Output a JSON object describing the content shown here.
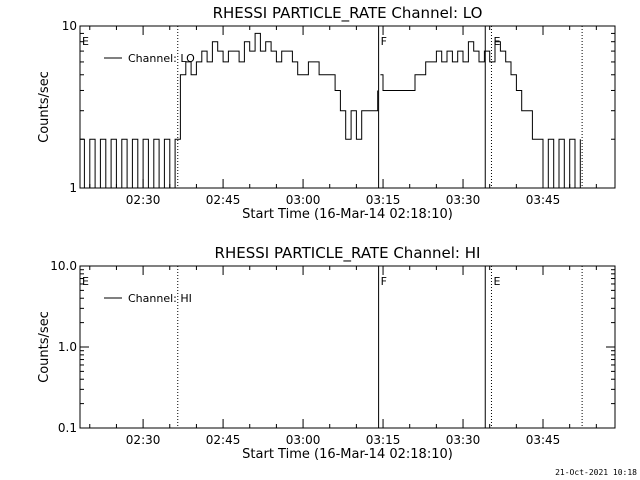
{
  "footer": {
    "timestamp": "21-Oct-2021 10:18"
  },
  "chart_data": [
    {
      "type": "line",
      "title": "RHESSI PARTICLE_RATE Channel: LO",
      "xlabel": "Start Time (16-Mar-14 02:18:10)",
      "ylabel": "Counts/sec",
      "yscale": "log",
      "ylim": [
        1,
        10
      ],
      "xlim": [
        "02:18:10",
        "03:58:30"
      ],
      "x_ticks": [
        "02:30",
        "02:45",
        "03:00",
        "03:15",
        "03:30",
        "03:45"
      ],
      "y_ticks": [
        "1",
        "10"
      ],
      "legend": {
        "position": "top-left",
        "entries": [
          "Channel: LO"
        ]
      },
      "grid": false,
      "markers": [
        {
          "label": "E",
          "time": "02:18:10",
          "style": "none"
        },
        {
          "label": "",
          "time": "02:36:30",
          "style": "dotted"
        },
        {
          "label": "F",
          "time": "03:14:10",
          "style": "solid"
        },
        {
          "label": "",
          "time": "03:34:10",
          "style": "solid"
        },
        {
          "label": "E",
          "time": "03:35:20",
          "style": "dotted"
        },
        {
          "label": "",
          "time": "03:52:20",
          "style": "dotted"
        }
      ],
      "series": [
        {
          "name": "Channel: LO",
          "gaps_at": [
            "03:14:10"
          ],
          "x": [
            "02:18:10",
            "02:19:00",
            "02:20:00",
            "02:21:00",
            "02:22:00",
            "02:23:00",
            "02:24:00",
            "02:25:00",
            "02:26:00",
            "02:27:00",
            "02:28:00",
            "02:29:00",
            "02:30:00",
            "02:31:00",
            "02:32:00",
            "02:33:00",
            "02:34:00",
            "02:35:00",
            "02:36:00",
            "02:36:30",
            "02:37:00",
            "02:38:00",
            "02:39:00",
            "02:40:00",
            "02:41:00",
            "02:42:00",
            "02:43:00",
            "02:44:00",
            "02:45:00",
            "02:46:00",
            "02:47:00",
            "02:48:00",
            "02:49:00",
            "02:50:00",
            "02:51:00",
            "02:52:00",
            "02:53:00",
            "02:54:00",
            "02:55:00",
            "02:56:00",
            "02:57:00",
            "02:58:00",
            "02:59:00",
            "03:00:00",
            "03:01:00",
            "03:02:00",
            "03:03:00",
            "03:04:00",
            "03:05:00",
            "03:06:00",
            "03:07:00",
            "03:08:00",
            "03:09:00",
            "03:10:00",
            "03:11:00",
            "03:12:00",
            "03:13:00",
            "03:14:00",
            "03:14:30",
            "03:15:00",
            "03:16:00",
            "03:17:00",
            "03:18:00",
            "03:19:00",
            "03:20:00",
            "03:21:00",
            "03:22:00",
            "03:23:00",
            "03:24:00",
            "03:25:00",
            "03:26:00",
            "03:27:00",
            "03:28:00",
            "03:29:00",
            "03:30:00",
            "03:31:00",
            "03:32:00",
            "03:33:00",
            "03:34:00",
            "03:35:00",
            "03:36:00",
            "03:37:00",
            "03:38:00",
            "03:39:00",
            "03:40:00",
            "03:41:00",
            "03:42:00",
            "03:43:00",
            "03:44:00",
            "03:45:00",
            "03:46:00",
            "03:47:00",
            "03:48:00",
            "03:49:00",
            "03:50:00",
            "03:51:00",
            "03:52:00"
          ],
          "y": [
            2,
            1,
            2,
            1,
            2,
            1,
            2,
            1,
            2,
            1,
            2,
            1,
            2,
            1,
            2,
            1,
            2,
            1,
            2,
            2,
            5,
            6,
            5,
            6,
            7,
            6,
            8,
            7,
            6,
            7,
            7,
            6,
            8,
            7,
            9,
            7,
            8,
            7,
            6,
            7,
            7,
            6,
            5,
            5,
            6,
            6,
            5,
            5,
            5,
            4,
            3,
            2,
            3,
            2,
            3,
            3,
            3,
            4,
            5,
            4,
            4,
            4,
            4,
            4,
            4,
            5,
            5,
            6,
            6,
            7,
            6,
            7,
            6,
            7,
            6,
            8,
            7,
            6,
            7,
            6,
            8,
            7,
            6,
            5,
            4,
            3,
            3,
            2,
            2,
            1,
            2,
            1,
            2,
            1,
            2,
            1,
            2
          ]
        }
      ]
    },
    {
      "type": "line",
      "title": "RHESSI PARTICLE_RATE Channel: HI",
      "xlabel": "Start Time (16-Mar-14 02:18:10)",
      "ylabel": "Counts/sec",
      "yscale": "log",
      "ylim": [
        0.1,
        10
      ],
      "xlim": [
        "02:18:10",
        "03:58:30"
      ],
      "x_ticks": [
        "02:30",
        "02:45",
        "03:00",
        "03:15",
        "03:30",
        "03:45"
      ],
      "y_ticks": [
        "0.1",
        "1.0",
        "10.0"
      ],
      "legend": {
        "position": "top-left",
        "entries": [
          "Channel: HI"
        ]
      },
      "grid": false,
      "markers": [
        {
          "label": "E",
          "time": "02:18:10",
          "style": "none"
        },
        {
          "label": "",
          "time": "02:36:30",
          "style": "dotted"
        },
        {
          "label": "F",
          "time": "03:14:10",
          "style": "solid"
        },
        {
          "label": "",
          "time": "03:34:10",
          "style": "solid"
        },
        {
          "label": "E",
          "time": "03:35:20",
          "style": "dotted"
        },
        {
          "label": "",
          "time": "03:52:20",
          "style": "dotted"
        }
      ],
      "series": [
        {
          "name": "Channel: HI",
          "x": [],
          "y": []
        }
      ]
    }
  ]
}
